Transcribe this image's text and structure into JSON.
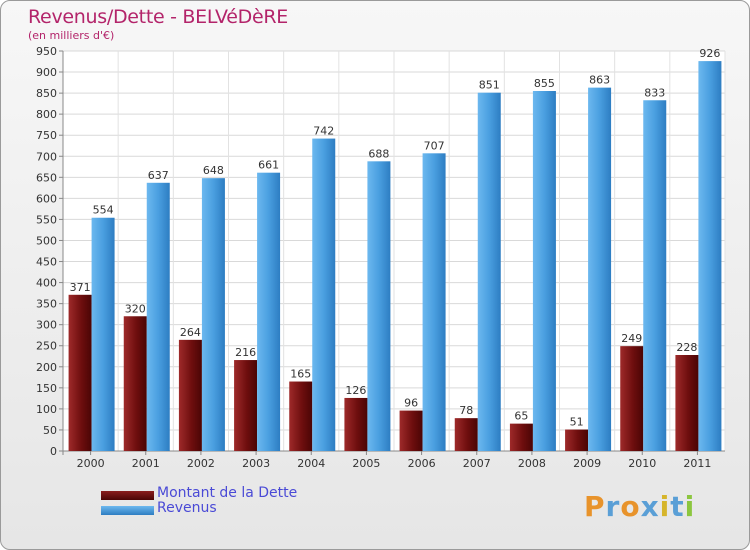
{
  "chart_data": {
    "type": "bar",
    "title": "Revenus/Dette - BELVéDèRE",
    "subtitle": "(en milliers d'€)",
    "xlabel": "",
    "ylabel": "",
    "ylim": [
      0,
      950
    ],
    "yticks": [
      0,
      50,
      100,
      150,
      200,
      250,
      300,
      350,
      400,
      450,
      500,
      550,
      600,
      650,
      700,
      750,
      800,
      850,
      900,
      950
    ],
    "grid": true,
    "categories": [
      "2000",
      "2001",
      "2002",
      "2003",
      "2004",
      "2005",
      "2006",
      "2007",
      "2008",
      "2009",
      "2010",
      "2011"
    ],
    "series": [
      {
        "name": "Montant de la Dette",
        "color": "#7a1010",
        "values": [
          371,
          320,
          264,
          216,
          165,
          126,
          96,
          78,
          65,
          51,
          249,
          228
        ]
      },
      {
        "name": "Revenus",
        "color": "#4fa6e6",
        "values": [
          554,
          637,
          648,
          661,
          742,
          688,
          707,
          851,
          855,
          863,
          833,
          926
        ]
      }
    ],
    "legend_position": "bottom-left"
  },
  "branding": {
    "logo_text": "Proxiti",
    "letter_colors": [
      "#e8932b",
      "#5a9fd6",
      "#e8932b",
      "#5a9fd6",
      "#d6b52b",
      "#5a9fd6",
      "#8cc63f"
    ]
  }
}
